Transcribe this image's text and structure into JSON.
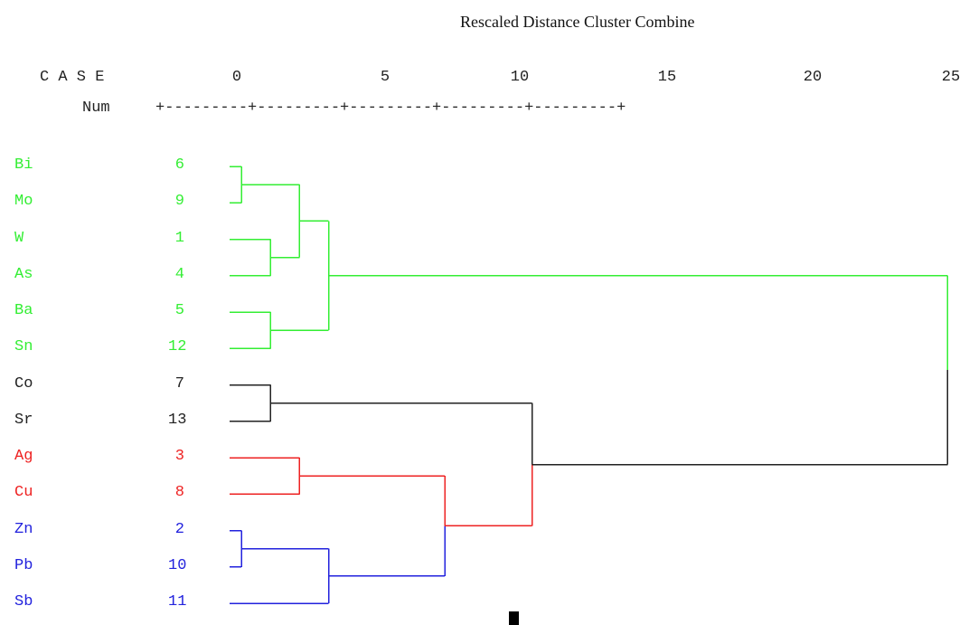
{
  "title": "Rescaled Distance Cluster Combine",
  "header": {
    "case_label": "C A S E",
    "num_label": "Num",
    "ruler": "+---------+---------+---------+---------+---------+",
    "scale_ticks": [
      "0",
      "5",
      "10",
      "15",
      "20",
      "25"
    ]
  },
  "colors": {
    "green": "#33ee33",
    "black": "#222222",
    "red": "#ee2222",
    "blue": "#2222dd"
  },
  "cases": [
    {
      "name": "Bi",
      "num": "6",
      "color": "green"
    },
    {
      "name": "Mo",
      "num": "9",
      "color": "green"
    },
    {
      "name": "W",
      "num": "1",
      "color": "green"
    },
    {
      "name": "As",
      "num": "4",
      "color": "green"
    },
    {
      "name": "Ba",
      "num": "5",
      "color": "green"
    },
    {
      "name": "Sn",
      "num": "12",
      "color": "green"
    },
    {
      "name": "Co",
      "num": "7",
      "color": "black"
    },
    {
      "name": "Sr",
      "num": "13",
      "color": "black"
    },
    {
      "name": "Ag",
      "num": "3",
      "color": "red"
    },
    {
      "name": "Cu",
      "num": "8",
      "color": "red"
    },
    {
      "name": "Zn",
      "num": "2",
      "color": "blue"
    },
    {
      "name": "Pb",
      "num": "10",
      "color": "blue"
    },
    {
      "name": "Sb",
      "num": "11",
      "color": "blue"
    }
  ],
  "merges": [
    {
      "left": 0,
      "right": 1,
      "distance": 0.7,
      "color": "green"
    },
    {
      "left": 2,
      "right": 3,
      "distance": 1.7,
      "color": "green"
    },
    {
      "left": 4,
      "right": 5,
      "distance": 1.7,
      "color": "green"
    },
    {
      "left": "m0",
      "right": "m1",
      "distance": 2.7,
      "color": "green"
    },
    {
      "left": "m3",
      "right": "m2",
      "distance": 3.7,
      "color": "green"
    },
    {
      "left": 6,
      "right": 7,
      "distance": 1.7,
      "color": "black"
    },
    {
      "left": 8,
      "right": 9,
      "distance": 2.7,
      "color": "red"
    },
    {
      "left": 10,
      "right": 11,
      "distance": 0.7,
      "color": "blue"
    },
    {
      "left": "m7",
      "right": 12,
      "distance": 3.7,
      "color": "blue"
    },
    {
      "left": "m6",
      "right": "m8",
      "distance": 7.7,
      "color": "red-blue"
    },
    {
      "left": "m5",
      "right": "m9",
      "distance": 10.7,
      "color": "black-red"
    },
    {
      "left": "m4",
      "right": "m10",
      "distance": 25,
      "color": "green-black"
    }
  ]
}
